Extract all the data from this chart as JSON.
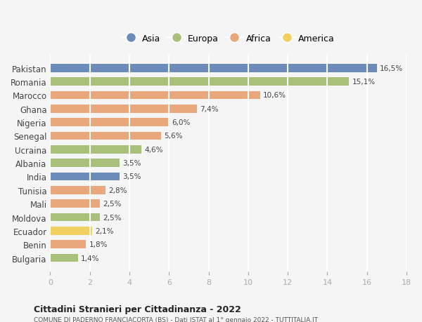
{
  "countries": [
    "Pakistan",
    "Romania",
    "Marocco",
    "Ghana",
    "Nigeria",
    "Senegal",
    "Ucraina",
    "Albania",
    "India",
    "Tunisia",
    "Mali",
    "Moldova",
    "Ecuador",
    "Benin",
    "Bulgaria"
  ],
  "values": [
    16.5,
    15.1,
    10.6,
    7.4,
    6.0,
    5.6,
    4.6,
    3.5,
    3.5,
    2.8,
    2.5,
    2.5,
    2.1,
    1.8,
    1.4
  ],
  "labels": [
    "16,5%",
    "15,1%",
    "10,6%",
    "7,4%",
    "6,0%",
    "5,6%",
    "4,6%",
    "3,5%",
    "3,5%",
    "2,8%",
    "2,5%",
    "2,5%",
    "2,1%",
    "1,8%",
    "1,4%"
  ],
  "continents": [
    "Asia",
    "Europa",
    "Africa",
    "Africa",
    "Africa",
    "Africa",
    "Europa",
    "Europa",
    "Asia",
    "Africa",
    "Africa",
    "Europa",
    "America",
    "Africa",
    "Europa"
  ],
  "colors": {
    "Asia": "#6b8cba",
    "Europa": "#a8c07a",
    "Africa": "#e8a87c",
    "America": "#f0d060"
  },
  "legend_order": [
    "Asia",
    "Europa",
    "Africa",
    "America"
  ],
  "title": "Cittadini Stranieri per Cittadinanza - 2022",
  "subtitle": "COMUNE DI PADERNO FRANCIACORTA (BS) - Dati ISTAT al 1° gennaio 2022 - TUTTITALIA.IT",
  "xlim": [
    0,
    18
  ],
  "xticks": [
    0,
    2,
    4,
    6,
    8,
    10,
    12,
    14,
    16,
    18
  ],
  "background_color": "#f5f5f5",
  "grid_color": "#ffffff",
  "bar_height": 0.6
}
